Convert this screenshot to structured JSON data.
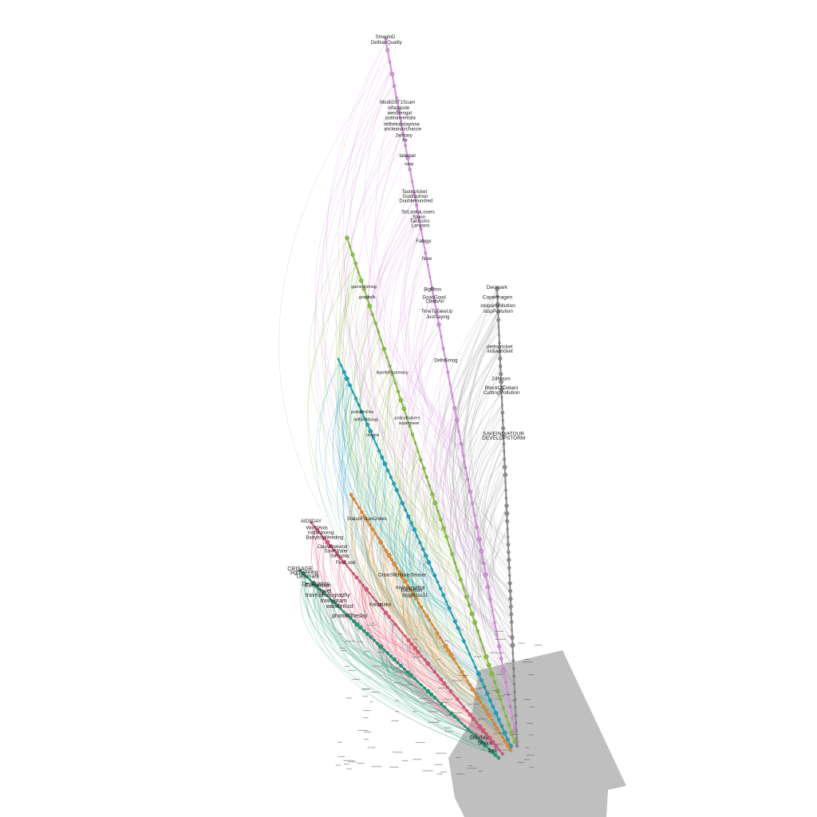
{
  "graph": {
    "type": "hive-network-diagram",
    "colors": {
      "background": "#ffffff",
      "gray_blob": "#bfbfbf",
      "node_stroke": "#333333",
      "edge_gray": "#8c8c8c"
    },
    "clusters": [
      {
        "name": "purple",
        "color": "#d88be0",
        "labels": [
          "SmoginD",
          "DelhiairQuality",
          "ModiGST1Scam",
          "infanticide",
          "westbengal",
          "putinamentala",
          "letthekaydaynow",
          "aircleanairchance",
          "January",
          "Air",
          "failedair",
          "now",
          "Tastecricket",
          "Goldfashion",
          "DoubleHundred",
          "SriLankaLosers",
          "Storm",
          "Tantrums",
          "Lanyans",
          "Falsgyi",
          "Now",
          "BigBoss",
          "GoodGood",
          "CleanAir",
          "TimeToTakeUp",
          "JustSaying",
          "DelhiSmog"
        ]
      },
      {
        "name": "gray",
        "color": "#8c8c8c",
        "labels": [
          "Denmark",
          "Copenhagen",
          "stopairpollution",
          "stopPollution",
          "delhicricket",
          "indiacricket",
          "24hours",
          "BlockOfDelani",
          "CuttingPollution",
          "SAVEINDIATOUR",
          "DEVELOPSTORM"
        ]
      },
      {
        "name": "green",
        "color": "#86c43a",
        "labels": [
          "gameofsmog",
          "goodtalk",
          "ApolloPharmacy",
          "policymakers",
          "supermeet"
        ]
      },
      {
        "name": "teal",
        "color": "#18a4c4",
        "labels": [
          "pollutionOne",
          "delhicoldsnap",
          "dolphin"
        ]
      },
      {
        "name": "orange",
        "color": "#f08a24",
        "labels": [
          "StatusFutureJokes",
          "OriseSMaldivesTeaser",
          "AishwaryaRai",
          "Bachchan",
          "BiggBoss11"
        ]
      },
      {
        "name": "pink",
        "color": "#e0547e",
        "labels": [
          "AIDSDAY",
          "WorldAids",
          "IndiaMoving",
          "BabyboyWeeding",
          "CiaoWeekend",
          "SaveWater",
          "Saturday",
          "FirstLook",
          "Karnataka"
        ]
      },
      {
        "name": "dark-green",
        "color": "#1a9e78",
        "labels": [
          "CRISAGE",
          "sightseeing",
          "Denmark",
          "Destination",
          "Eurovision",
          "Travel",
          "travelphotography",
          "travelgram",
          "wanderlust",
          "photooftheday",
          "Sunday",
          "Shout",
          "Ask"
        ]
      }
    ]
  }
}
